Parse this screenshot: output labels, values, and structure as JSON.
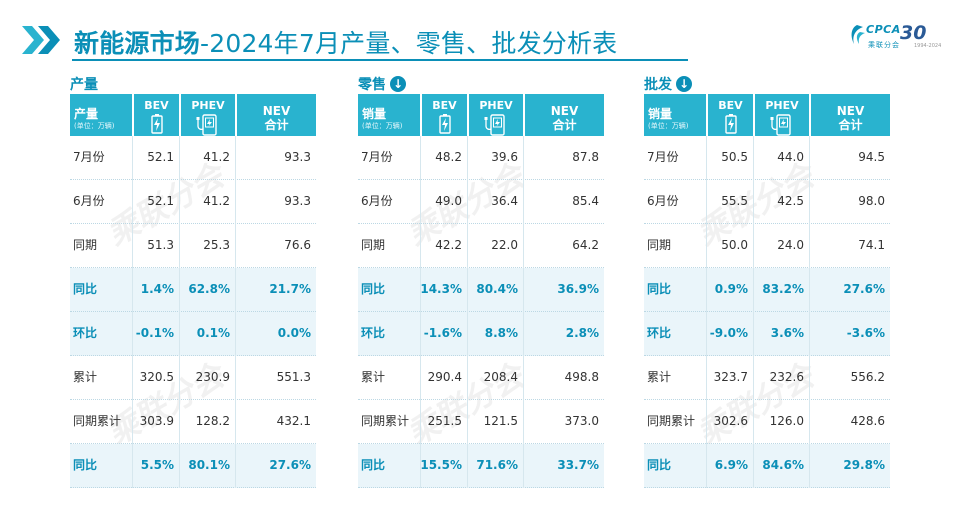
{
  "header": {
    "title_bold": "新能源市场",
    "title_rest": "-2024年7月产量、零售、批发分析表",
    "logo_text": "CPCA",
    "logo_sub": "乘联分会",
    "badge": "30",
    "badge_sub": "1994-2024"
  },
  "colors": {
    "accent": "#0b8fb7",
    "header_fill": "#29b3cf",
    "highlight_row": "#eaf5fa"
  },
  "watermark": "乘联分会",
  "columns": {
    "bev": "BEV",
    "phev": "PHEV",
    "nev_top": "NEV",
    "nev_bottom": "合计"
  },
  "sections": [
    {
      "heading": "产量",
      "has_arrow": false,
      "row_header": "产量",
      "unit": "(单位：万辆)",
      "rows": [
        {
          "label": "7月份",
          "bev": "52.1",
          "phev": "41.2",
          "nev": "93.3",
          "pct": false
        },
        {
          "label": "6月份",
          "bev": "52.1",
          "phev": "41.2",
          "nev": "93.3",
          "pct": false
        },
        {
          "label": "同期",
          "bev": "51.3",
          "phev": "25.3",
          "nev": "76.6",
          "pct": false
        },
        {
          "label": "同比",
          "bev": "1.4%",
          "phev": "62.8%",
          "nev": "21.7%",
          "pct": true
        },
        {
          "label": "环比",
          "bev": "-0.1%",
          "phev": "0.1%",
          "nev": "0.0%",
          "pct": true
        },
        {
          "label": "累计",
          "bev": "320.5",
          "phev": "230.9",
          "nev": "551.3",
          "pct": false
        },
        {
          "label": "同期累计",
          "bev": "303.9",
          "phev": "128.2",
          "nev": "432.1",
          "pct": false
        },
        {
          "label": "同比",
          "bev": "5.5%",
          "phev": "80.1%",
          "nev": "27.6%",
          "pct": true
        }
      ]
    },
    {
      "heading": "零售",
      "has_arrow": true,
      "row_header": "销量",
      "unit": "(单位：万辆)",
      "rows": [
        {
          "label": "7月份",
          "bev": "48.2",
          "phev": "39.6",
          "nev": "87.8",
          "pct": false
        },
        {
          "label": "6月份",
          "bev": "49.0",
          "phev": "36.4",
          "nev": "85.4",
          "pct": false
        },
        {
          "label": "同期",
          "bev": "42.2",
          "phev": "22.0",
          "nev": "64.2",
          "pct": false
        },
        {
          "label": "同比",
          "bev": "14.3%",
          "phev": "80.4%",
          "nev": "36.9%",
          "pct": true
        },
        {
          "label": "环比",
          "bev": "-1.6%",
          "phev": "8.8%",
          "nev": "2.8%",
          "pct": true
        },
        {
          "label": "累计",
          "bev": "290.4",
          "phev": "208.4",
          "nev": "498.8",
          "pct": false
        },
        {
          "label": "同期累计",
          "bev": "251.5",
          "phev": "121.5",
          "nev": "373.0",
          "pct": false
        },
        {
          "label": "同比",
          "bev": "15.5%",
          "phev": "71.6%",
          "nev": "33.7%",
          "pct": true
        }
      ]
    },
    {
      "heading": "批发",
      "has_arrow": true,
      "row_header": "销量",
      "unit": "(单位：万辆)",
      "rows": [
        {
          "label": "7月份",
          "bev": "50.5",
          "phev": "44.0",
          "nev": "94.5",
          "pct": false
        },
        {
          "label": "6月份",
          "bev": "55.5",
          "phev": "42.5",
          "nev": "98.0",
          "pct": false
        },
        {
          "label": "同期",
          "bev": "50.0",
          "phev": "24.0",
          "nev": "74.1",
          "pct": false
        },
        {
          "label": "同比",
          "bev": "0.9%",
          "phev": "83.2%",
          "nev": "27.6%",
          "pct": true
        },
        {
          "label": "环比",
          "bev": "-9.0%",
          "phev": "3.6%",
          "nev": "-3.6%",
          "pct": true
        },
        {
          "label": "累计",
          "bev": "323.7",
          "phev": "232.6",
          "nev": "556.2",
          "pct": false
        },
        {
          "label": "同期累计",
          "bev": "302.6",
          "phev": "126.0",
          "nev": "428.6",
          "pct": false
        },
        {
          "label": "同比",
          "bev": "6.9%",
          "phev": "84.6%",
          "nev": "29.8%",
          "pct": true
        }
      ]
    }
  ]
}
